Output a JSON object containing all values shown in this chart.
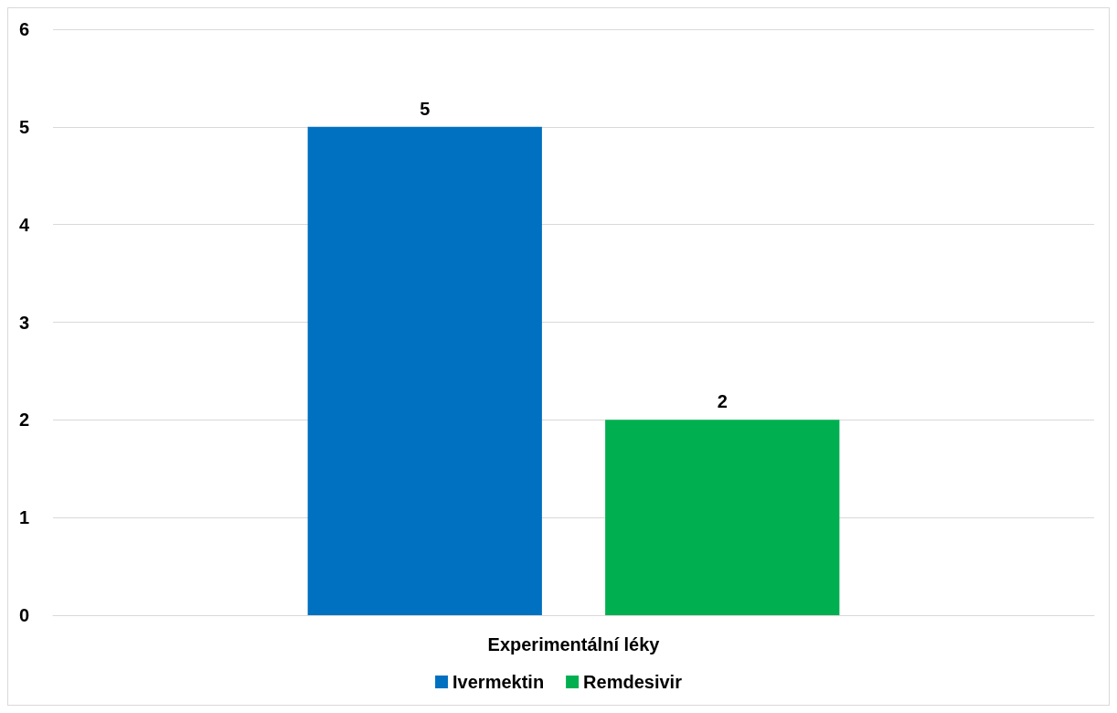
{
  "chart_data": {
    "type": "bar",
    "categories": [
      "Experimentální léky"
    ],
    "series": [
      {
        "name": "Ivermektin",
        "color": "#0070c0",
        "values": [
          5
        ]
      },
      {
        "name": "Remdesivir",
        "color": "#00b050",
        "values": [
          2
        ]
      }
    ],
    "ylim": [
      0,
      6
    ],
    "yticks": [
      0,
      1,
      2,
      3,
      4,
      5,
      6
    ],
    "grid": "y",
    "legend": "bottom",
    "data_labels": true
  }
}
